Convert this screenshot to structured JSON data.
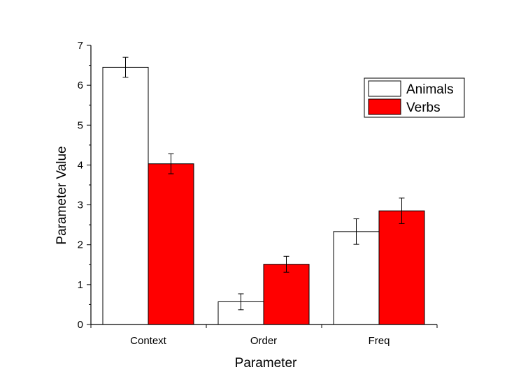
{
  "chart_data": {
    "type": "bar",
    "categories": [
      "Context",
      "Order",
      "Freq"
    ],
    "series": [
      {
        "name": "Animals",
        "values": [
          6.45,
          0.57,
          2.33
        ],
        "errors": [
          0.25,
          0.2,
          0.32
        ],
        "color": "#ffffff"
      },
      {
        "name": "Verbs",
        "values": [
          4.03,
          1.51,
          2.85
        ],
        "errors": [
          0.25,
          0.2,
          0.32
        ],
        "color": "#ff0000"
      }
    ],
    "xlabel": "Parameter",
    "ylabel": "Parameter Value",
    "ylim": [
      0,
      7
    ],
    "yticks": [
      "0",
      "1",
      "2",
      "3",
      "4",
      "5",
      "6",
      "7"
    ],
    "legend_position": "top-right",
    "grid": false
  }
}
